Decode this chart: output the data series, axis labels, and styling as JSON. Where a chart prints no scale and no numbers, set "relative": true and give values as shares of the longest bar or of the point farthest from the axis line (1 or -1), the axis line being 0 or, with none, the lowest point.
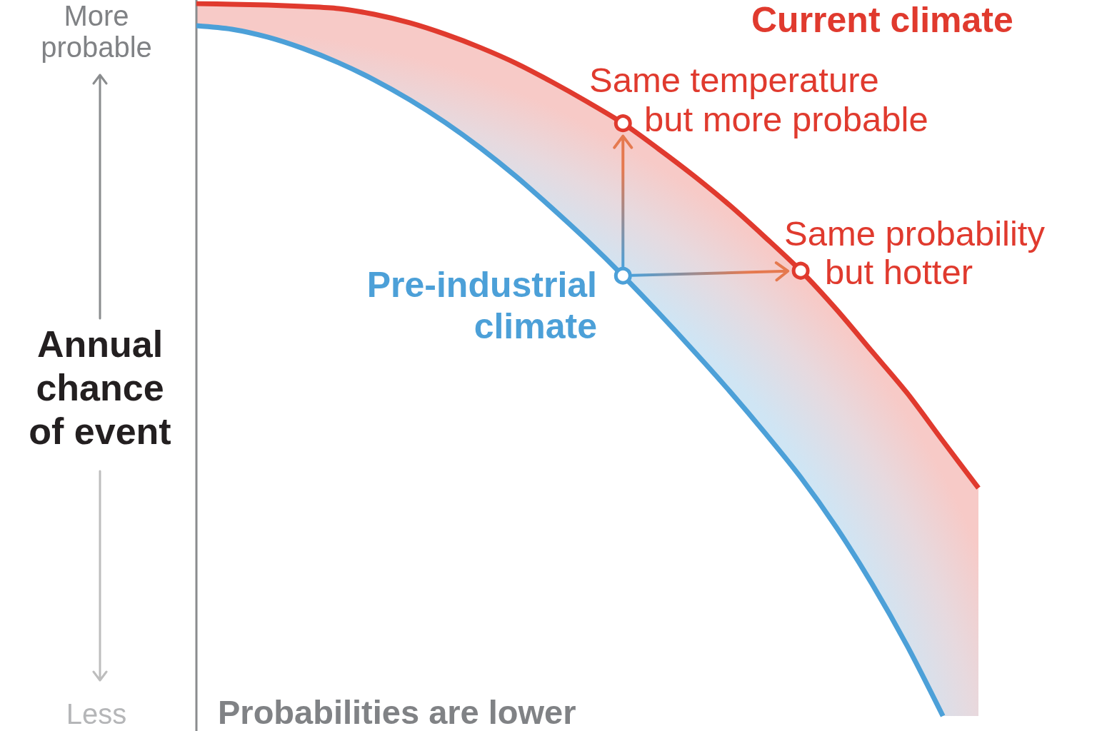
{
  "chart_data": {
    "type": "line",
    "relative": true,
    "ylabel": "Annual chance of event",
    "categories": [
      null,
      null,
      null,
      null,
      null,
      null,
      null,
      null,
      null,
      null,
      null,
      null,
      null,
      null,
      null,
      null,
      null,
      null,
      null,
      null,
      null,
      null,
      null
    ],
    "series": [
      {
        "name": "Current climate",
        "color": "#e03a2e",
        "values": [
          1,
          0.999,
          0.998,
          0.996,
          0.993,
          0.985,
          0.973,
          0.957,
          0.938,
          0.916,
          0.89,
          0.862,
          0.832,
          0.796,
          0.758,
          0.717,
          0.672,
          0.625,
          0.571,
          0.512,
          0.453,
          0.386,
          0.32
        ],
        "upper": [
          1,
          0.999,
          0.998,
          0.996,
          0.993,
          0.985,
          0.973,
          0.957,
          0.938,
          0.916,
          0.89,
          0.862,
          0.832,
          0.796,
          0.758,
          0.717,
          0.672,
          0.625,
          0.571,
          0.512,
          0.453,
          0.386,
          0.32
        ],
        "lower": [
          0.969,
          0.964,
          0.953,
          0.937,
          0.917,
          0.893,
          0.865,
          0.833,
          0.797,
          0.757,
          0.713,
          0.667,
          0.618,
          0.566,
          0.512,
          0.456,
          0.397,
          0.335,
          0.265,
          0.186,
          0.098,
          0,
          0
        ]
      },
      {
        "name": "Pre-industrial climate",
        "color": "#4ca0d8",
        "values": [
          0.969,
          0.964,
          0.953,
          0.937,
          0.917,
          0.893,
          0.865,
          0.833,
          0.797,
          0.757,
          0.713,
          0.667,
          0.618,
          0.566,
          0.512,
          0.456,
          0.397,
          0.335,
          0.265,
          0.186,
          0.098,
          0,
          null
        ]
      }
    ],
    "annotations": [
      "More probable",
      "Less",
      "Same temperature\nbut more probable",
      "Same probability\nbut hotter",
      "Probabilities are lower"
    ]
  }
}
